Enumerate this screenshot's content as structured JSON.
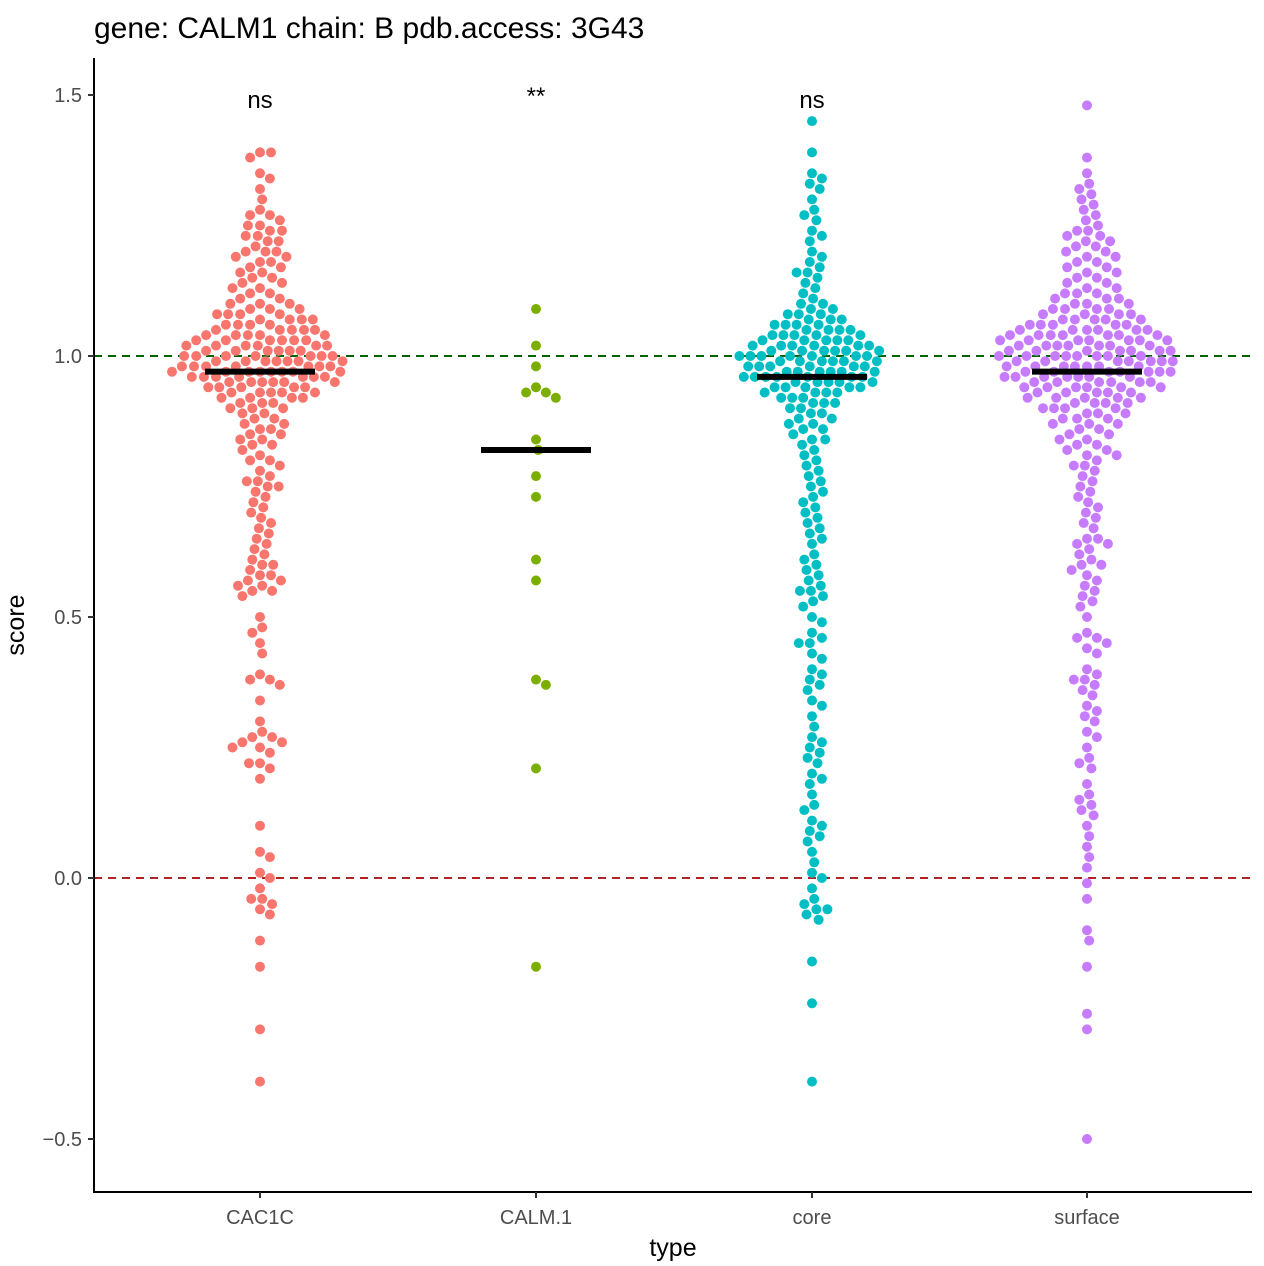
{
  "chart_data": {
    "type": "scatter",
    "subtype": "beeswarm",
    "title": "gene: CALM1 chain: B pdb.access: 3G43",
    "xlabel": "type",
    "ylabel": "score",
    "ylim": [
      -0.6,
      1.58
    ],
    "yticks": [
      "-0.5",
      "0.0",
      "0.5",
      "1.0",
      "1.5"
    ],
    "ytick_values": [
      -0.5,
      0.0,
      0.5,
      1.0,
      1.5
    ],
    "categories": [
      "CAC1C",
      "CALM.1",
      "core",
      "surface"
    ],
    "grid": false,
    "legend": "none",
    "reference_lines": [
      {
        "y": 1.0,
        "color": "#006400",
        "style": "dashed"
      },
      {
        "y": 0.0,
        "color": "#b22222",
        "style": "dashed"
      }
    ],
    "significance": [
      "ns",
      "**",
      "ns",
      ""
    ],
    "series": [
      {
        "category": "CAC1C",
        "color": "#F8766D",
        "median": 0.97,
        "values": [
          1.39,
          1.39,
          1.38,
          1.35,
          1.34,
          1.32,
          1.3,
          1.28,
          1.27,
          1.27,
          1.26,
          1.25,
          1.25,
          1.24,
          1.24,
          1.23,
          1.23,
          1.22,
          1.22,
          1.21,
          1.2,
          1.2,
          1.2,
          1.19,
          1.19,
          1.18,
          1.18,
          1.17,
          1.17,
          1.16,
          1.16,
          1.15,
          1.15,
          1.14,
          1.14,
          1.13,
          1.13,
          1.12,
          1.12,
          1.11,
          1.11,
          1.1,
          1.1,
          1.1,
          1.09,
          1.09,
          1.09,
          1.08,
          1.08,
          1.08,
          1.08,
          1.07,
          1.07,
          1.07,
          1.07,
          1.06,
          1.06,
          1.06,
          1.06,
          1.05,
          1.05,
          1.05,
          1.05,
          1.05,
          1.04,
          1.04,
          1.04,
          1.04,
          1.04,
          1.03,
          1.03,
          1.03,
          1.03,
          1.03,
          1.03,
          1.02,
          1.02,
          1.02,
          1.02,
          1.02,
          1.02,
          1.01,
          1.01,
          1.01,
          1.01,
          1.01,
          1.01,
          1.0,
          1.0,
          1.0,
          1.0,
          1.0,
          1.0,
          1.0,
          0.99,
          0.99,
          0.99,
          0.99,
          0.99,
          0.99,
          0.99,
          0.98,
          0.98,
          0.98,
          0.98,
          0.98,
          0.98,
          0.98,
          0.97,
          0.97,
          0.97,
          0.97,
          0.97,
          0.97,
          0.97,
          0.97,
          0.96,
          0.96,
          0.96,
          0.96,
          0.96,
          0.96,
          0.96,
          0.95,
          0.95,
          0.95,
          0.95,
          0.95,
          0.95,
          0.94,
          0.94,
          0.94,
          0.94,
          0.94,
          0.93,
          0.93,
          0.93,
          0.93,
          0.93,
          0.92,
          0.92,
          0.92,
          0.92,
          0.91,
          0.91,
          0.91,
          0.9,
          0.9,
          0.9,
          0.89,
          0.89,
          0.88,
          0.88,
          0.87,
          0.87,
          0.86,
          0.86,
          0.85,
          0.85,
          0.84,
          0.84,
          0.83,
          0.83,
          0.82,
          0.81,
          0.8,
          0.8,
          0.79,
          0.78,
          0.77,
          0.76,
          0.76,
          0.75,
          0.75,
          0.74,
          0.73,
          0.72,
          0.71,
          0.7,
          0.69,
          0.68,
          0.67,
          0.66,
          0.65,
          0.64,
          0.63,
          0.62,
          0.61,
          0.6,
          0.6,
          0.59,
          0.58,
          0.58,
          0.57,
          0.57,
          0.56,
          0.56,
          0.55,
          0.55,
          0.54,
          0.5,
          0.48,
          0.47,
          0.45,
          0.43,
          0.39,
          0.38,
          0.38,
          0.37,
          0.34,
          0.3,
          0.28,
          0.27,
          0.27,
          0.26,
          0.26,
          0.25,
          0.25,
          0.24,
          0.22,
          0.22,
          0.21,
          0.19,
          0.1,
          0.05,
          0.04,
          0.01,
          0.0,
          -0.02,
          -0.04,
          -0.04,
          -0.05,
          -0.06,
          -0.07,
          -0.12,
          -0.17,
          -0.29,
          -0.39
        ]
      },
      {
        "category": "CALM.1",
        "color": "#7CAE00",
        "median": 0.82,
        "values": [
          1.09,
          1.02,
          0.98,
          0.94,
          0.93,
          0.93,
          0.92,
          0.84,
          0.82,
          0.77,
          0.73,
          0.61,
          0.57,
          0.38,
          0.37,
          0.21,
          -0.17
        ]
      },
      {
        "category": "core",
        "color": "#00BFC4",
        "median": 0.96,
        "values": [
          1.45,
          1.39,
          1.35,
          1.34,
          1.33,
          1.32,
          1.3,
          1.28,
          1.27,
          1.26,
          1.24,
          1.23,
          1.22,
          1.2,
          1.19,
          1.18,
          1.17,
          1.16,
          1.16,
          1.15,
          1.14,
          1.13,
          1.12,
          1.11,
          1.1,
          1.1,
          1.09,
          1.09,
          1.08,
          1.08,
          1.08,
          1.07,
          1.07,
          1.07,
          1.06,
          1.06,
          1.06,
          1.06,
          1.05,
          1.05,
          1.05,
          1.05,
          1.04,
          1.04,
          1.04,
          1.04,
          1.04,
          1.03,
          1.03,
          1.03,
          1.03,
          1.03,
          1.02,
          1.02,
          1.02,
          1.02,
          1.02,
          1.02,
          1.01,
          1.01,
          1.01,
          1.01,
          1.01,
          1.01,
          1.0,
          1.0,
          1.0,
          1.0,
          1.0,
          1.0,
          1.0,
          0.99,
          0.99,
          0.99,
          0.99,
          0.99,
          0.99,
          0.98,
          0.98,
          0.98,
          0.98,
          0.98,
          0.98,
          0.97,
          0.97,
          0.97,
          0.97,
          0.97,
          0.97,
          0.96,
          0.96,
          0.96,
          0.96,
          0.96,
          0.96,
          0.96,
          0.95,
          0.95,
          0.95,
          0.95,
          0.95,
          0.94,
          0.94,
          0.94,
          0.94,
          0.94,
          0.93,
          0.93,
          0.93,
          0.93,
          0.92,
          0.92,
          0.92,
          0.91,
          0.91,
          0.91,
          0.9,
          0.9,
          0.89,
          0.89,
          0.88,
          0.88,
          0.87,
          0.87,
          0.86,
          0.86,
          0.85,
          0.84,
          0.84,
          0.83,
          0.82,
          0.81,
          0.8,
          0.79,
          0.78,
          0.77,
          0.76,
          0.75,
          0.74,
          0.73,
          0.72,
          0.71,
          0.7,
          0.69,
          0.68,
          0.67,
          0.66,
          0.65,
          0.64,
          0.62,
          0.61,
          0.6,
          0.59,
          0.58,
          0.57,
          0.56,
          0.55,
          0.55,
          0.54,
          0.53,
          0.52,
          0.5,
          0.49,
          0.47,
          0.46,
          0.45,
          0.45,
          0.43,
          0.42,
          0.4,
          0.39,
          0.38,
          0.37,
          0.36,
          0.34,
          0.33,
          0.31,
          0.29,
          0.27,
          0.26,
          0.25,
          0.24,
          0.23,
          0.22,
          0.2,
          0.19,
          0.18,
          0.16,
          0.14,
          0.13,
          0.11,
          0.1,
          0.09,
          0.08,
          0.07,
          0.05,
          0.03,
          0.01,
          0.0,
          -0.02,
          -0.04,
          -0.05,
          -0.06,
          -0.06,
          -0.07,
          -0.08,
          -0.16,
          -0.24,
          -0.39
        ]
      },
      {
        "category": "surface",
        "color": "#C77CFF",
        "median": 0.97,
        "values": [
          1.48,
          1.38,
          1.35,
          1.33,
          1.32,
          1.31,
          1.3,
          1.29,
          1.28,
          1.27,
          1.26,
          1.25,
          1.24,
          1.24,
          1.23,
          1.23,
          1.22,
          1.22,
          1.21,
          1.21,
          1.2,
          1.2,
          1.19,
          1.19,
          1.18,
          1.18,
          1.17,
          1.17,
          1.16,
          1.16,
          1.15,
          1.15,
          1.14,
          1.14,
          1.13,
          1.13,
          1.12,
          1.12,
          1.12,
          1.11,
          1.11,
          1.11,
          1.1,
          1.1,
          1.1,
          1.09,
          1.09,
          1.09,
          1.09,
          1.08,
          1.08,
          1.08,
          1.08,
          1.07,
          1.07,
          1.07,
          1.07,
          1.07,
          1.06,
          1.06,
          1.06,
          1.06,
          1.06,
          1.05,
          1.05,
          1.05,
          1.05,
          1.05,
          1.05,
          1.04,
          1.04,
          1.04,
          1.04,
          1.04,
          1.04,
          1.04,
          1.03,
          1.03,
          1.03,
          1.03,
          1.03,
          1.03,
          1.03,
          1.02,
          1.02,
          1.02,
          1.02,
          1.02,
          1.02,
          1.02,
          1.01,
          1.01,
          1.01,
          1.01,
          1.01,
          1.01,
          1.01,
          1.0,
          1.0,
          1.0,
          1.0,
          1.0,
          1.0,
          1.0,
          1.0,
          0.99,
          0.99,
          0.99,
          0.99,
          0.99,
          0.99,
          0.99,
          0.98,
          0.98,
          0.98,
          0.98,
          0.98,
          0.98,
          0.98,
          0.97,
          0.97,
          0.97,
          0.97,
          0.97,
          0.97,
          0.97,
          0.96,
          0.96,
          0.96,
          0.96,
          0.96,
          0.96,
          0.96,
          0.95,
          0.95,
          0.95,
          0.95,
          0.95,
          0.95,
          0.94,
          0.94,
          0.94,
          0.94,
          0.94,
          0.94,
          0.93,
          0.93,
          0.93,
          0.93,
          0.93,
          0.92,
          0.92,
          0.92,
          0.92,
          0.92,
          0.91,
          0.91,
          0.91,
          0.91,
          0.9,
          0.9,
          0.9,
          0.9,
          0.89,
          0.89,
          0.89,
          0.88,
          0.88,
          0.88,
          0.87,
          0.87,
          0.87,
          0.86,
          0.86,
          0.85,
          0.85,
          0.84,
          0.84,
          0.83,
          0.83,
          0.82,
          0.82,
          0.81,
          0.81,
          0.8,
          0.79,
          0.79,
          0.78,
          0.77,
          0.76,
          0.75,
          0.74,
          0.73,
          0.72,
          0.71,
          0.7,
          0.69,
          0.68,
          0.67,
          0.65,
          0.65,
          0.64,
          0.64,
          0.63,
          0.62,
          0.61,
          0.6,
          0.6,
          0.59,
          0.58,
          0.57,
          0.56,
          0.55,
          0.54,
          0.53,
          0.52,
          0.5,
          0.47,
          0.46,
          0.46,
          0.45,
          0.44,
          0.43,
          0.4,
          0.39,
          0.38,
          0.38,
          0.37,
          0.36,
          0.35,
          0.33,
          0.32,
          0.31,
          0.3,
          0.28,
          0.27,
          0.25,
          0.23,
          0.22,
          0.21,
          0.18,
          0.16,
          0.15,
          0.14,
          0.13,
          0.12,
          0.1,
          0.08,
          0.06,
          0.04,
          0.02,
          -0.01,
          -0.04,
          -0.1,
          -0.12,
          -0.17,
          -0.26,
          -0.29,
          -0.5
        ]
      }
    ]
  }
}
